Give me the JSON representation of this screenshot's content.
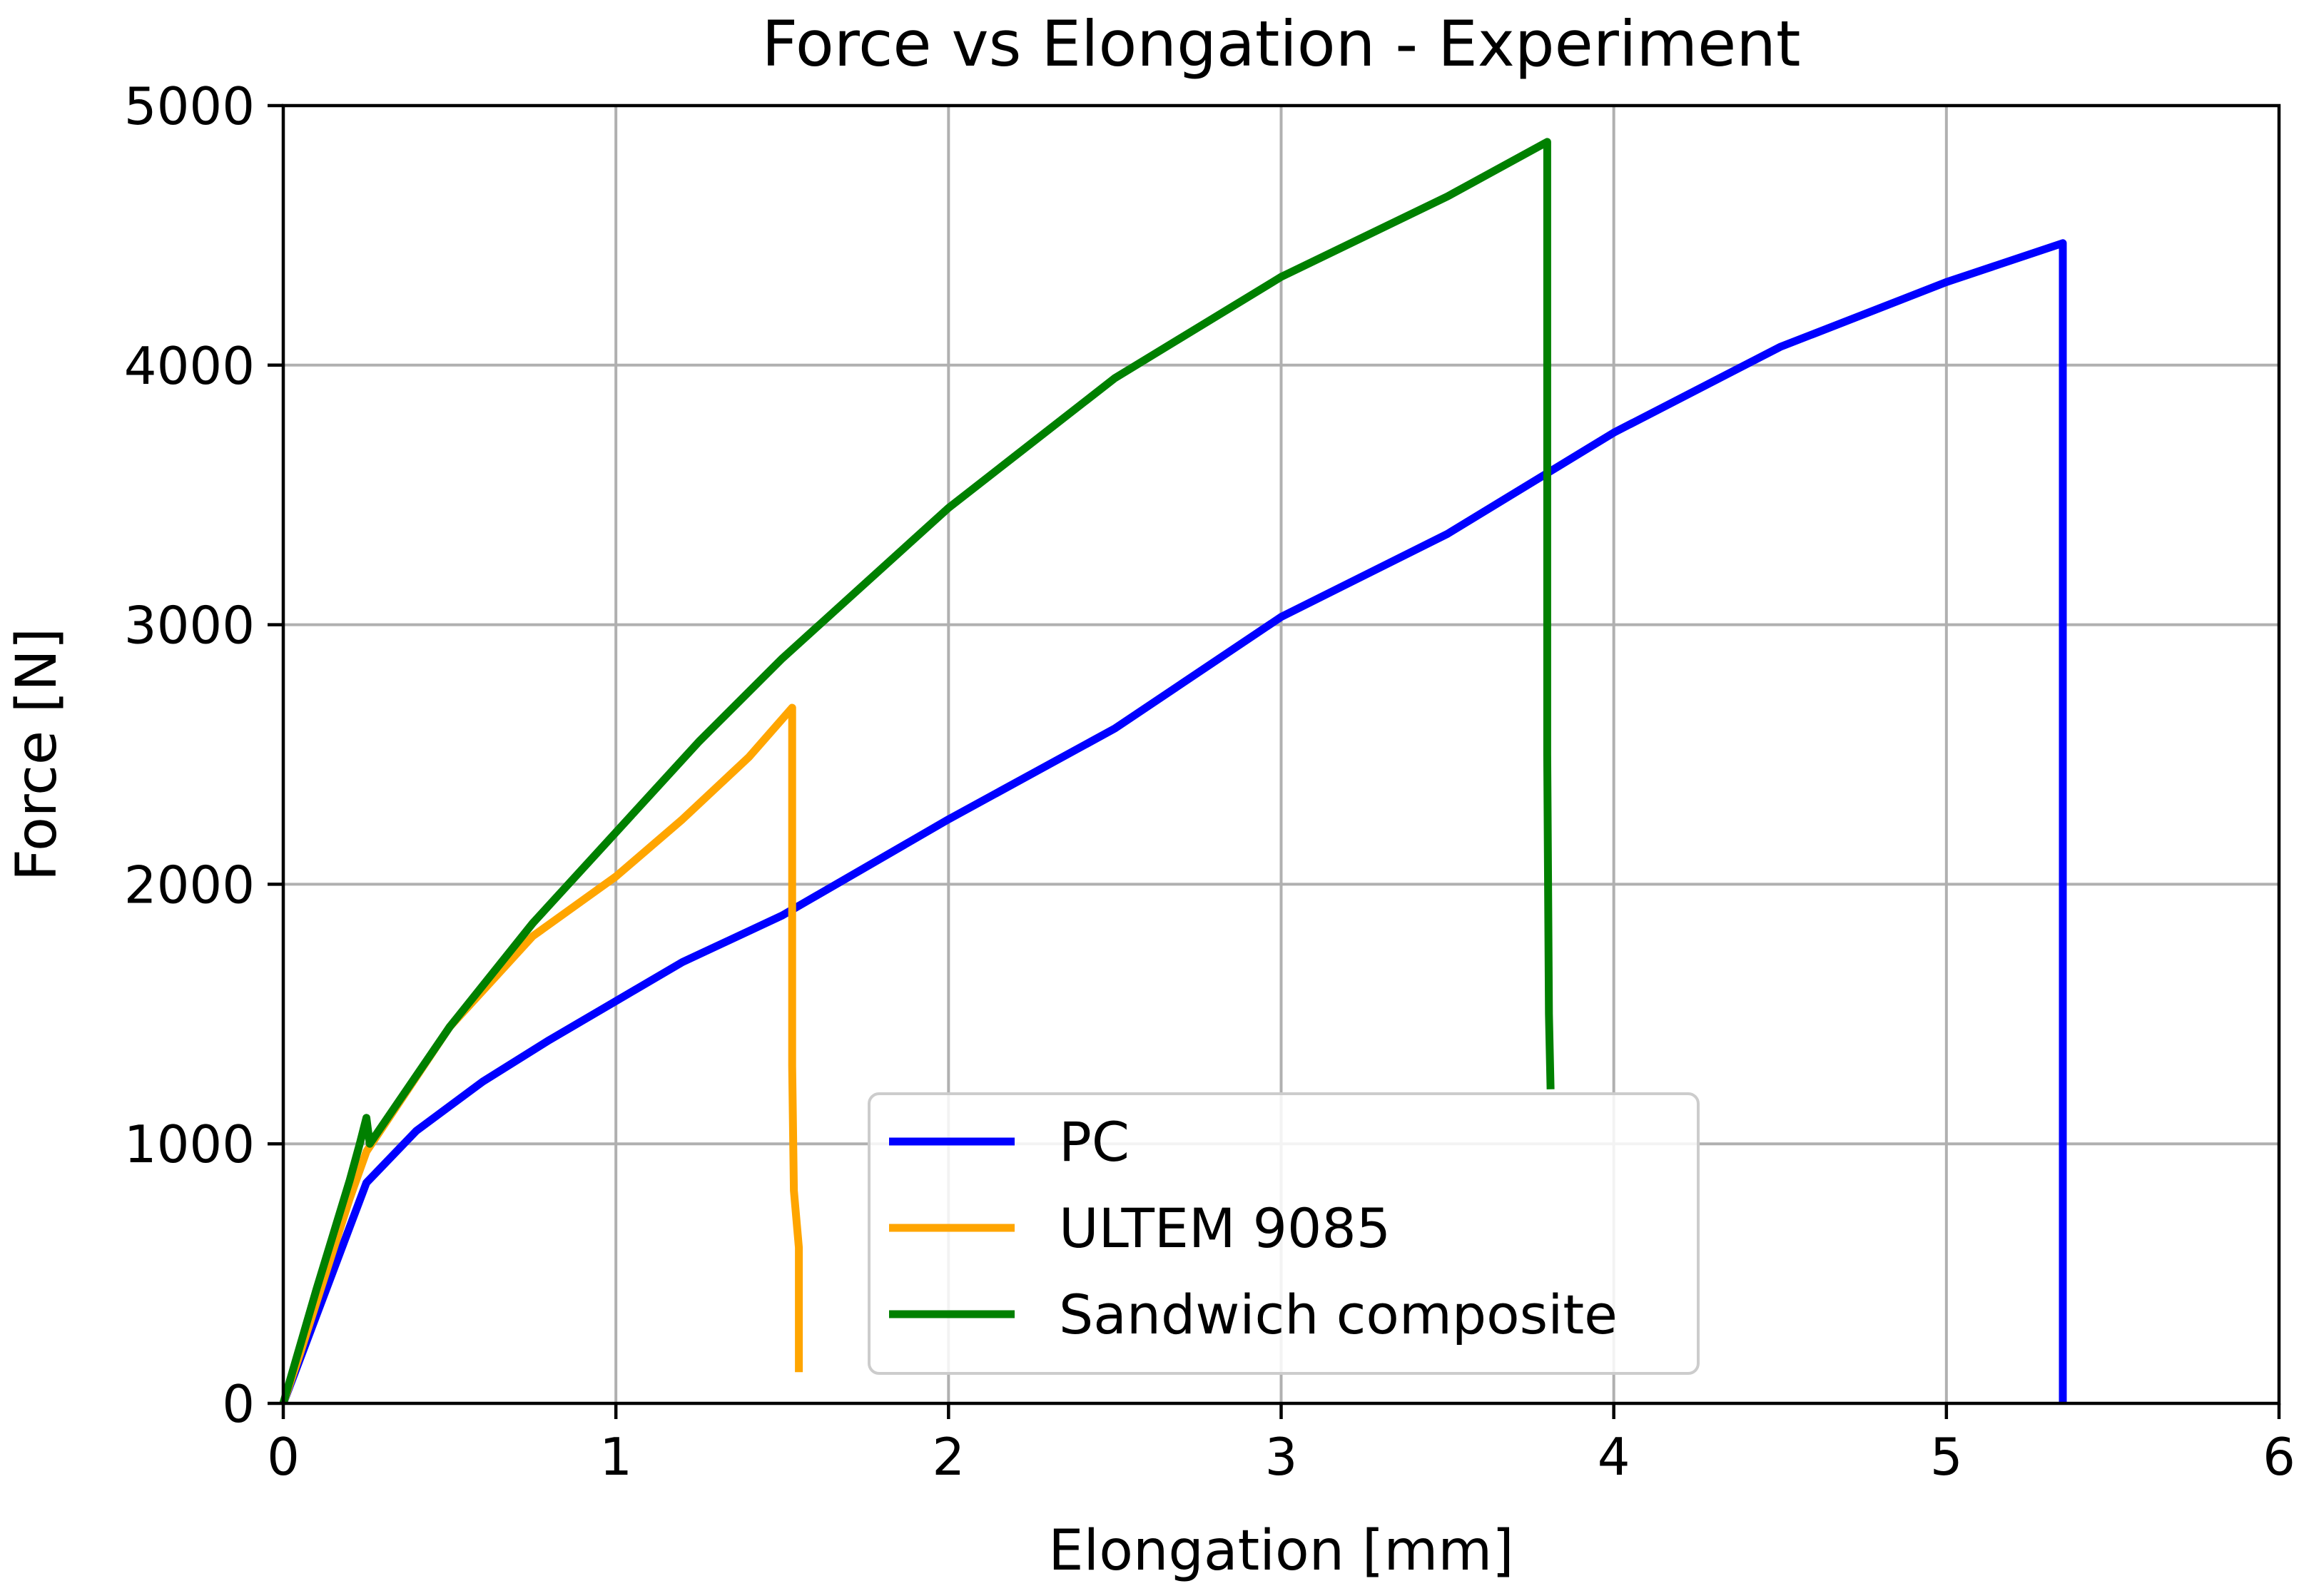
{
  "chart_data": {
    "type": "line",
    "title": "Force vs Elongation - Experiment",
    "xlabel": "Elongation [mm]",
    "ylabel": "Force [N]",
    "xlim": [
      0,
      6
    ],
    "ylim": [
      0,
      5000
    ],
    "xticks": [
      0,
      1,
      2,
      3,
      4,
      5,
      6
    ],
    "yticks": [
      0,
      1000,
      2000,
      3000,
      4000,
      5000
    ],
    "xtick_labels": [
      "0",
      "1",
      "2",
      "3",
      "4",
      "5",
      "6"
    ],
    "ytick_labels": [
      "0",
      "1000",
      "2000",
      "3000",
      "4000",
      "5000"
    ],
    "grid": true,
    "legend_position": "lower-center",
    "series": [
      {
        "name": "PC",
        "color": "#0000ff",
        "points": [
          [
            0.0,
            0
          ],
          [
            0.05,
            170
          ],
          [
            0.1,
            340
          ],
          [
            0.15,
            510
          ],
          [
            0.2,
            680
          ],
          [
            0.25,
            850
          ],
          [
            0.4,
            1050
          ],
          [
            0.6,
            1240
          ],
          [
            0.8,
            1400
          ],
          [
            1.0,
            1550
          ],
          [
            1.2,
            1700
          ],
          [
            1.5,
            1880
          ],
          [
            2.0,
            2250
          ],
          [
            2.5,
            2600
          ],
          [
            3.0,
            3030
          ],
          [
            3.5,
            3350
          ],
          [
            4.0,
            3740
          ],
          [
            4.5,
            4070
          ],
          [
            5.0,
            4320
          ],
          [
            5.35,
            4470
          ],
          [
            5.35,
            0
          ]
        ]
      },
      {
        "name": "ULTEM 9085",
        "color": "#ffa500",
        "points": [
          [
            0.0,
            0
          ],
          [
            0.05,
            190
          ],
          [
            0.1,
            390
          ],
          [
            0.15,
            590
          ],
          [
            0.2,
            790
          ],
          [
            0.25,
            970
          ],
          [
            0.5,
            1450
          ],
          [
            0.75,
            1800
          ],
          [
            1.0,
            2030
          ],
          [
            1.2,
            2250
          ],
          [
            1.4,
            2490
          ],
          [
            1.53,
            2680
          ],
          [
            1.53,
            1300
          ],
          [
            1.535,
            820
          ],
          [
            1.55,
            600
          ],
          [
            1.55,
            120
          ]
        ]
      },
      {
        "name": "Sandwich composite",
        "color": "#008000",
        "points": [
          [
            0.0,
            0
          ],
          [
            0.05,
            220
          ],
          [
            0.1,
            440
          ],
          [
            0.15,
            650
          ],
          [
            0.2,
            860
          ],
          [
            0.23,
            1000
          ],
          [
            0.25,
            1100
          ],
          [
            0.26,
            1000
          ],
          [
            0.5,
            1450
          ],
          [
            0.75,
            1850
          ],
          [
            1.0,
            2200
          ],
          [
            1.25,
            2550
          ],
          [
            1.5,
            2870
          ],
          [
            2.0,
            3450
          ],
          [
            2.5,
            3950
          ],
          [
            3.0,
            4340
          ],
          [
            3.5,
            4650
          ],
          [
            3.8,
            4860
          ],
          [
            3.8,
            2500
          ],
          [
            3.805,
            1500
          ],
          [
            3.81,
            1210
          ]
        ]
      }
    ]
  }
}
